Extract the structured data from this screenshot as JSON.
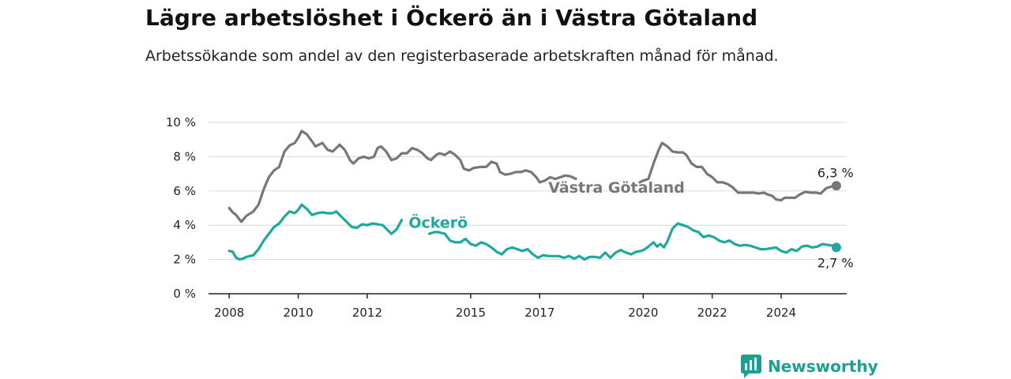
{
  "header": {
    "title": "Lägre arbetslöshet i Öckerö än i Västra Götaland",
    "subtitle": "Arbetssökande som andel av den registerbaserade arbetskraften månad för månad."
  },
  "brand": {
    "name": "Newsworthy",
    "icon": "bar-chart-icon",
    "color": "#1f9f92"
  },
  "chart_data": {
    "type": "line",
    "ylim": [
      0,
      10
    ],
    "y_ticks": [
      {
        "value": 0,
        "label": "0 %"
      },
      {
        "value": 2,
        "label": "2 %"
      },
      {
        "value": 4,
        "label": "4 %"
      },
      {
        "value": 6,
        "label": "6 %"
      },
      {
        "value": 8,
        "label": "8 %"
      },
      {
        "value": 10,
        "label": "10 %"
      }
    ],
    "xlim": [
      2007.4,
      2025.9
    ],
    "x_ticks": [
      {
        "value": 2008,
        "label": "2008"
      },
      {
        "value": 2010,
        "label": "2010"
      },
      {
        "value": 2012,
        "label": "2012"
      },
      {
        "value": 2015,
        "label": "2015"
      },
      {
        "value": 2017,
        "label": "2017"
      },
      {
        "value": 2020,
        "label": "2020"
      },
      {
        "value": 2022,
        "label": "2022"
      },
      {
        "value": 2024,
        "label": "2024"
      }
    ],
    "grid": true,
    "series": [
      {
        "name": "Västra Götaland",
        "color": "#77767b",
        "end_label": "6,3 %",
        "segments": [
          [
            [
              2008.0,
              5.0
            ],
            [
              2008.1,
              4.75
            ],
            [
              2008.2,
              4.6
            ],
            [
              2008.35,
              4.2
            ],
            [
              2008.5,
              4.55
            ],
            [
              2008.7,
              4.8
            ],
            [
              2008.85,
              5.2
            ],
            [
              2009.0,
              6.1
            ],
            [
              2009.15,
              6.8
            ],
            [
              2009.3,
              7.2
            ],
            [
              2009.45,
              7.4
            ],
            [
              2009.6,
              8.3
            ],
            [
              2009.75,
              8.65
            ],
            [
              2009.9,
              8.8
            ],
            [
              2010.0,
              9.1
            ],
            [
              2010.1,
              9.5
            ],
            [
              2010.25,
              9.3
            ],
            [
              2010.4,
              8.9
            ],
            [
              2010.5,
              8.6
            ],
            [
              2010.7,
              8.8
            ],
            [
              2010.85,
              8.4
            ],
            [
              2011.0,
              8.3
            ],
            [
              2011.1,
              8.5
            ],
            [
              2011.2,
              8.7
            ],
            [
              2011.35,
              8.4
            ],
            [
              2011.5,
              7.8
            ],
            [
              2011.6,
              7.6
            ],
            [
              2011.75,
              7.9
            ],
            [
              2011.9,
              8.0
            ],
            [
              2012.05,
              7.9
            ],
            [
              2012.2,
              8.0
            ],
            [
              2012.3,
              8.5
            ],
            [
              2012.4,
              8.6
            ],
            [
              2012.55,
              8.3
            ],
            [
              2012.7,
              7.8
            ],
            [
              2012.85,
              7.9
            ],
            [
              2013.0,
              8.2
            ],
            [
              2013.15,
              8.2
            ],
            [
              2013.3,
              8.5
            ],
            [
              2013.45,
              8.4
            ],
            [
              2013.6,
              8.2
            ],
            [
              2013.75,
              7.9
            ],
            [
              2013.85,
              7.8
            ],
            [
              2014.0,
              8.1
            ],
            [
              2014.1,
              8.2
            ],
            [
              2014.25,
              8.1
            ],
            [
              2014.4,
              8.3
            ],
            [
              2014.55,
              8.1
            ],
            [
              2014.7,
              7.8
            ],
            [
              2014.8,
              7.3
            ],
            [
              2014.95,
              7.2
            ],
            [
              2015.1,
              7.35
            ],
            [
              2015.3,
              7.4
            ],
            [
              2015.45,
              7.4
            ],
            [
              2015.6,
              7.7
            ],
            [
              2015.75,
              7.6
            ],
            [
              2015.85,
              7.1
            ],
            [
              2016.0,
              6.95
            ],
            [
              2016.15,
              7.0
            ],
            [
              2016.3,
              7.1
            ],
            [
              2016.45,
              7.1
            ],
            [
              2016.6,
              7.2
            ],
            [
              2016.75,
              7.1
            ],
            [
              2016.9,
              6.8
            ],
            [
              2017.0,
              6.5
            ],
            [
              2017.15,
              6.6
            ],
            [
              2017.3,
              6.8
            ],
            [
              2017.45,
              6.7
            ],
            [
              2017.6,
              6.8
            ],
            [
              2017.75,
              6.9
            ],
            [
              2017.9,
              6.85
            ],
            [
              2018.05,
              6.7
            ]
          ],
          [
            [
              2019.9,
              6.5
            ],
            [
              2020.0,
              6.6
            ],
            [
              2020.15,
              6.7
            ],
            [
              2020.3,
              7.6
            ],
            [
              2020.45,
              8.4
            ],
            [
              2020.55,
              8.8
            ],
            [
              2020.7,
              8.6
            ],
            [
              2020.85,
              8.3
            ],
            [
              2021.0,
              8.25
            ],
            [
              2021.15,
              8.25
            ],
            [
              2021.25,
              8.1
            ],
            [
              2021.4,
              7.6
            ],
            [
              2021.55,
              7.4
            ],
            [
              2021.7,
              7.4
            ],
            [
              2021.85,
              7.0
            ],
            [
              2022.0,
              6.8
            ],
            [
              2022.15,
              6.5
            ],
            [
              2022.3,
              6.5
            ],
            [
              2022.45,
              6.4
            ],
            [
              2022.6,
              6.2
            ],
            [
              2022.75,
              5.9
            ],
            [
              2022.9,
              5.9
            ],
            [
              2023.05,
              5.9
            ],
            [
              2023.2,
              5.9
            ],
            [
              2023.35,
              5.85
            ],
            [
              2023.5,
              5.9
            ],
            [
              2023.6,
              5.8
            ],
            [
              2023.75,
              5.7
            ],
            [
              2023.85,
              5.5
            ],
            [
              2024.0,
              5.45
            ],
            [
              2024.1,
              5.6
            ],
            [
              2024.25,
              5.6
            ],
            [
              2024.4,
              5.6
            ],
            [
              2024.55,
              5.8
            ],
            [
              2024.7,
              5.95
            ],
            [
              2024.85,
              5.9
            ],
            [
              2025.0,
              5.9
            ],
            [
              2025.15,
              5.85
            ],
            [
              2025.3,
              6.15
            ],
            [
              2025.45,
              6.25
            ],
            [
              2025.6,
              6.3
            ]
          ]
        ]
      },
      {
        "name": "Öckerö",
        "color": "#1fa99c",
        "end_label": "2,7 %",
        "segments": [
          [
            [
              2008.0,
              2.5
            ],
            [
              2008.1,
              2.45
            ],
            [
              2008.2,
              2.1
            ],
            [
              2008.3,
              2.0
            ],
            [
              2008.4,
              2.05
            ],
            [
              2008.5,
              2.15
            ],
            [
              2008.6,
              2.2
            ],
            [
              2008.7,
              2.25
            ],
            [
              2008.85,
              2.6
            ],
            [
              2009.0,
              3.1
            ],
            [
              2009.15,
              3.5
            ],
            [
              2009.3,
              3.9
            ],
            [
              2009.45,
              4.1
            ],
            [
              2009.6,
              4.5
            ],
            [
              2009.75,
              4.8
            ],
            [
              2009.9,
              4.7
            ],
            [
              2010.0,
              4.9
            ],
            [
              2010.1,
              5.2
            ],
            [
              2010.25,
              4.95
            ],
            [
              2010.4,
              4.6
            ],
            [
              2010.55,
              4.7
            ],
            [
              2010.7,
              4.75
            ],
            [
              2010.85,
              4.7
            ],
            [
              2011.0,
              4.7
            ],
            [
              2011.1,
              4.8
            ],
            [
              2011.25,
              4.5
            ],
            [
              2011.4,
              4.2
            ],
            [
              2011.55,
              3.9
            ],
            [
              2011.7,
              3.85
            ],
            [
              2011.85,
              4.05
            ],
            [
              2012.0,
              4.0
            ],
            [
              2012.15,
              4.1
            ],
            [
              2012.3,
              4.05
            ],
            [
              2012.45,
              4.0
            ],
            [
              2012.6,
              3.7
            ],
            [
              2012.7,
              3.5
            ],
            [
              2012.85,
              3.75
            ],
            [
              2013.0,
              4.3
            ]
          ],
          [
            [
              2013.8,
              3.5
            ],
            [
              2013.95,
              3.6
            ],
            [
              2014.05,
              3.6
            ],
            [
              2014.15,
              3.55
            ],
            [
              2014.25,
              3.5
            ],
            [
              2014.4,
              3.1
            ],
            [
              2014.55,
              3.0
            ],
            [
              2014.7,
              3.0
            ],
            [
              2014.85,
              3.2
            ],
            [
              2015.0,
              2.9
            ],
            [
              2015.15,
              2.8
            ],
            [
              2015.3,
              3.0
            ],
            [
              2015.45,
              2.9
            ],
            [
              2015.6,
              2.7
            ],
            [
              2015.75,
              2.45
            ],
            [
              2015.9,
              2.3
            ],
            [
              2016.05,
              2.6
            ],
            [
              2016.2,
              2.7
            ],
            [
              2016.35,
              2.6
            ],
            [
              2016.5,
              2.5
            ],
            [
              2016.65,
              2.6
            ],
            [
              2016.8,
              2.3
            ],
            [
              2016.95,
              2.1
            ],
            [
              2017.1,
              2.25
            ],
            [
              2017.25,
              2.2
            ],
            [
              2017.4,
              2.2
            ],
            [
              2017.55,
              2.2
            ],
            [
              2017.7,
              2.1
            ],
            [
              2017.85,
              2.2
            ],
            [
              2018.0,
              2.05
            ],
            [
              2018.15,
              2.2
            ],
            [
              2018.3,
              2.0
            ],
            [
              2018.45,
              2.15
            ],
            [
              2018.6,
              2.15
            ],
            [
              2018.75,
              2.1
            ],
            [
              2018.9,
              2.4
            ],
            [
              2019.05,
              2.1
            ],
            [
              2019.2,
              2.4
            ],
            [
              2019.35,
              2.55
            ],
            [
              2019.5,
              2.4
            ],
            [
              2019.65,
              2.3
            ],
            [
              2019.8,
              2.45
            ],
            [
              2019.95,
              2.5
            ],
            [
              2020.05,
              2.6
            ],
            [
              2020.15,
              2.75
            ],
            [
              2020.3,
              3.0
            ],
            [
              2020.4,
              2.75
            ],
            [
              2020.5,
              2.9
            ],
            [
              2020.6,
              2.7
            ],
            [
              2020.7,
              3.05
            ],
            [
              2020.85,
              3.8
            ],
            [
              2021.0,
              4.1
            ],
            [
              2021.15,
              4.0
            ],
            [
              2021.3,
              3.9
            ],
            [
              2021.45,
              3.7
            ],
            [
              2021.6,
              3.6
            ],
            [
              2021.75,
              3.3
            ],
            [
              2021.9,
              3.4
            ],
            [
              2022.05,
              3.3
            ],
            [
              2022.2,
              3.1
            ],
            [
              2022.35,
              3.0
            ],
            [
              2022.5,
              3.1
            ],
            [
              2022.65,
              2.9
            ],
            [
              2022.8,
              2.8
            ],
            [
              2022.95,
              2.85
            ],
            [
              2023.1,
              2.8
            ],
            [
              2023.25,
              2.7
            ],
            [
              2023.4,
              2.6
            ],
            [
              2023.55,
              2.6
            ],
            [
              2023.7,
              2.65
            ],
            [
              2023.85,
              2.7
            ],
            [
              2024.0,
              2.5
            ],
            [
              2024.15,
              2.4
            ],
            [
              2024.3,
              2.6
            ],
            [
              2024.45,
              2.5
            ],
            [
              2024.6,
              2.75
            ],
            [
              2024.75,
              2.8
            ],
            [
              2024.9,
              2.7
            ],
            [
              2025.05,
              2.75
            ],
            [
              2025.2,
              2.9
            ],
            [
              2025.35,
              2.85
            ],
            [
              2025.5,
              2.8
            ],
            [
              2025.6,
              2.7
            ]
          ]
        ]
      }
    ]
  }
}
